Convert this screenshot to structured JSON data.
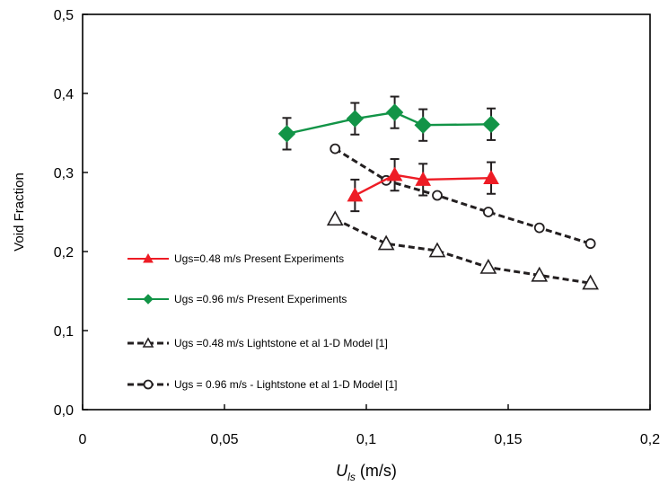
{
  "chart_data": {
    "type": "line",
    "xlabel": {
      "main": "U",
      "sub": "ls",
      "unit": " (m/s)"
    },
    "ylabel": "Void Fraction",
    "xlim": [
      0,
      0.2
    ],
    "ylim": [
      0,
      0.5
    ],
    "x_ticks": [
      0,
      0.05,
      0.1,
      0.15,
      0.2
    ],
    "x_tick_labels": [
      "0",
      "0,05",
      "0,1",
      "0,15",
      "0,2"
    ],
    "y_ticks": [
      0,
      0.1,
      0.2,
      0.3,
      0.4,
      0.5
    ],
    "y_tick_labels": [
      "0,0",
      "0,1",
      "0,2",
      "0,3",
      "0,4",
      "0,5"
    ],
    "grid": false,
    "legend_position": "inside-left",
    "series": [
      {
        "name": "Ugs=0.48 m/s Present Experiments",
        "color": "#ee1c25",
        "marker": "triangle",
        "marker_fill": "filled",
        "line_style": "solid",
        "x": [
          0.096,
          0.11,
          0.12,
          0.144
        ],
        "y": [
          0.271,
          0.297,
          0.291,
          0.293
        ],
        "error": [
          0.02,
          0.02,
          0.02,
          0.02
        ]
      },
      {
        "name": "Ugs =0.96 m/s Present Experiments",
        "color": "#129447",
        "marker": "diamond",
        "marker_fill": "filled",
        "line_style": "solid",
        "x": [
          0.072,
          0.096,
          0.11,
          0.12,
          0.144
        ],
        "y": [
          0.349,
          0.368,
          0.376,
          0.36,
          0.361
        ],
        "error": [
          0.02,
          0.02,
          0.02,
          0.02,
          0.02
        ]
      },
      {
        "name": "Ugs =0.48 m/s Lightstone et al 1-D Model [1]",
        "color": "#231f20",
        "marker": "triangle",
        "marker_fill": "open",
        "line_style": "dashed",
        "x": [
          0.089,
          0.107,
          0.125,
          0.143,
          0.161,
          0.179
        ],
        "y": [
          0.241,
          0.21,
          0.201,
          0.18,
          0.17,
          0.16
        ]
      },
      {
        "name": "Ugs = 0.96 m/s - Lightstone  et al 1-D Model [1]",
        "color": "#231f20",
        "marker": "circle",
        "marker_fill": "open",
        "line_style": "dashed",
        "x": [
          0.089,
          0.107,
          0.125,
          0.143,
          0.161,
          0.179
        ],
        "y": [
          0.33,
          0.29,
          0.271,
          0.25,
          0.23,
          0.21
        ]
      }
    ]
  }
}
